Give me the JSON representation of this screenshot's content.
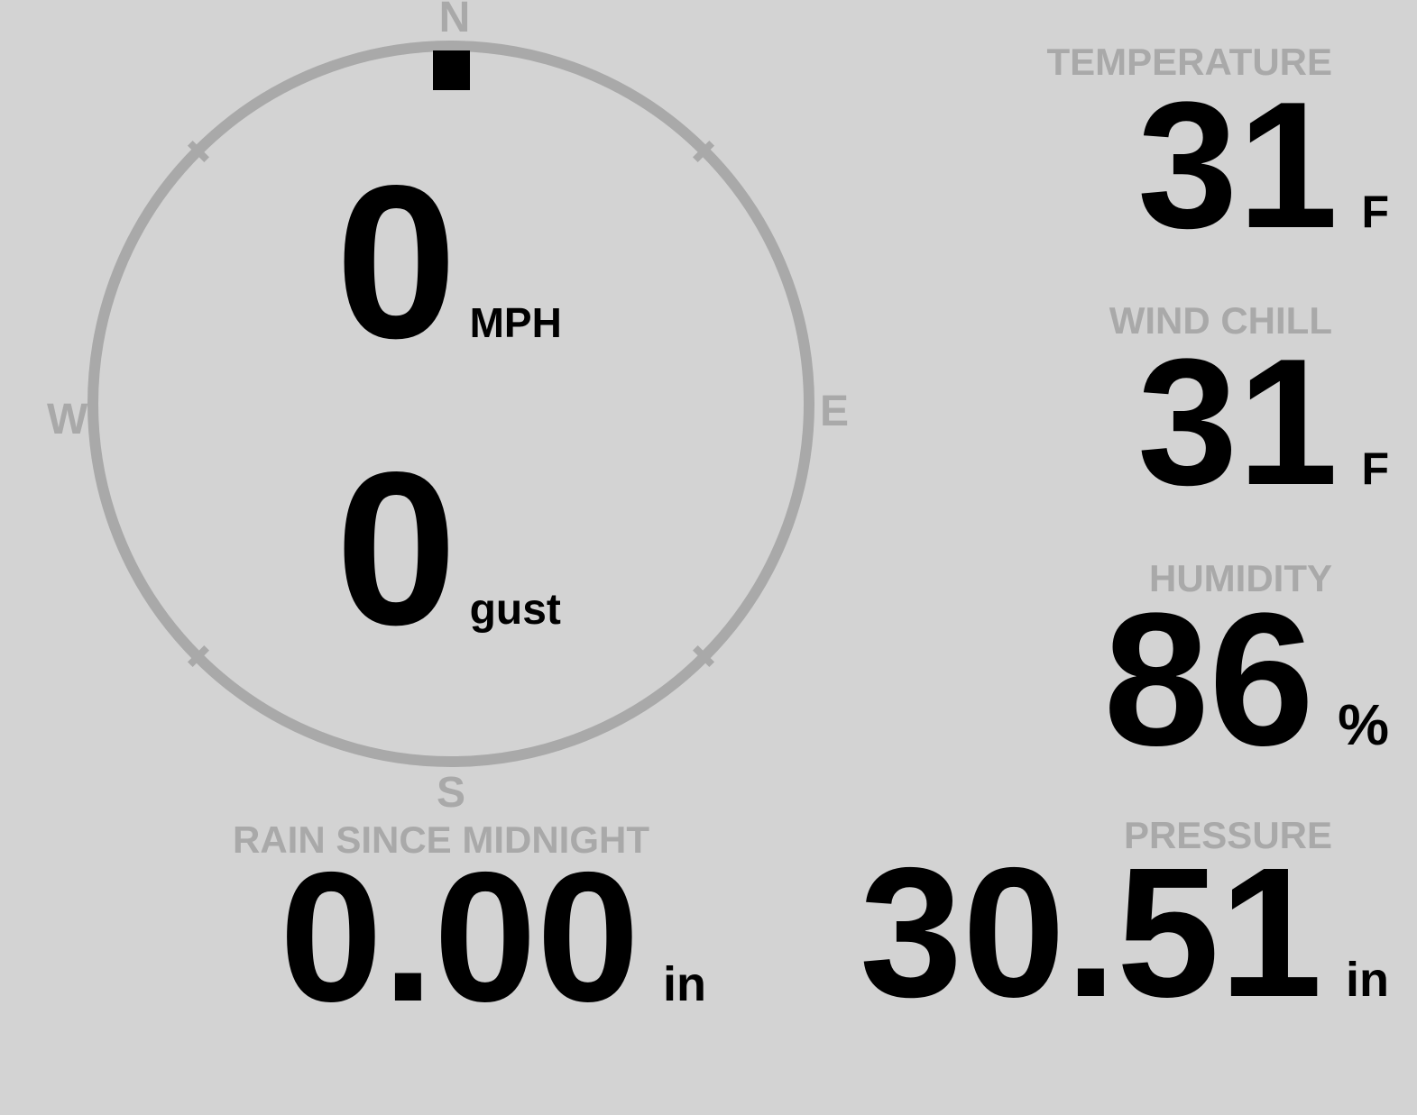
{
  "colors": {
    "background": "#d3d3d3",
    "muted": "#a9a9a9",
    "value_text": "#000000"
  },
  "compass": {
    "directions": {
      "north": "N",
      "east": "E",
      "south": "S",
      "west": "W"
    },
    "indicator_direction": "N",
    "wind_speed": {
      "value": "0",
      "unit": "MPH"
    },
    "wind_gust": {
      "value": "0",
      "unit": "gust"
    }
  },
  "metrics": {
    "temperature": {
      "label": "TEMPERATURE",
      "value": "31",
      "unit": "F"
    },
    "wind_chill": {
      "label": "WIND CHILL",
      "value": "31",
      "unit": "F"
    },
    "humidity": {
      "label": "HUMIDITY",
      "value": "86",
      "unit": "%"
    },
    "rain_since_midnight": {
      "label": "RAIN SINCE MIDNIGHT",
      "value": "0.00",
      "unit": "in"
    },
    "pressure": {
      "label": "PRESSURE",
      "value": "30.51",
      "unit": "in"
    }
  }
}
